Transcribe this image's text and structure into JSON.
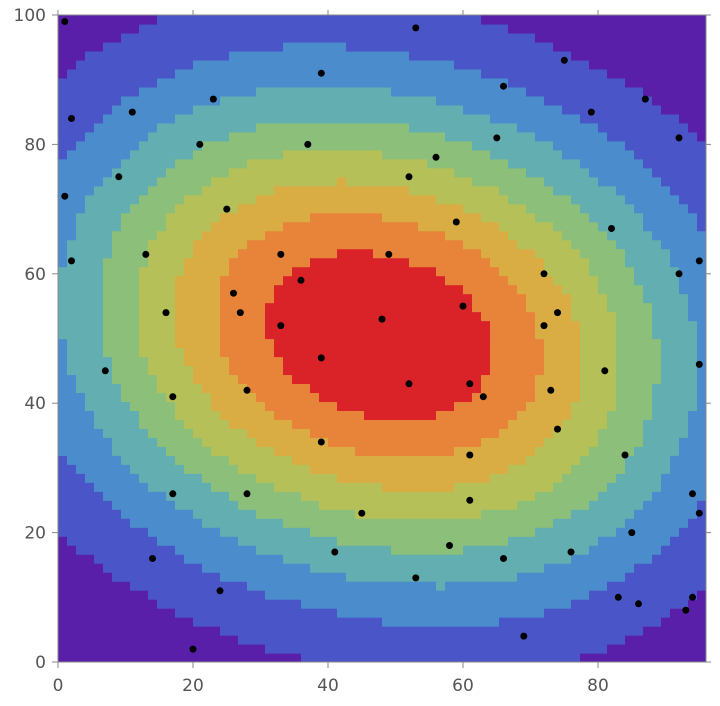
{
  "chart_data": {
    "type": "contour",
    "title": "",
    "xlabel": "",
    "ylabel": "",
    "xlim": [
      0,
      96
    ],
    "ylim": [
      0,
      100
    ],
    "x_ticks": [
      0,
      20,
      40,
      60,
      80
    ],
    "y_ticks": [
      0,
      20,
      40,
      60,
      80,
      100
    ],
    "x_tick_labels": [
      "0",
      "20",
      "40",
      "60",
      "80"
    ],
    "y_tick_labels": [
      "0",
      "20",
      "40",
      "60",
      "80",
      "100"
    ],
    "grid": false,
    "legend": "none",
    "contour_levels": 10,
    "palette": [
      "#5a1fa8",
      "#4a55c8",
      "#4a8ccc",
      "#62aeb0",
      "#8cbf7a",
      "#b5c058",
      "#d9ad44",
      "#e8833a",
      "#d92328"
    ],
    "peaks": [
      {
        "x": 30,
        "y": 56,
        "amplitude": 1.0
      },
      {
        "x": 65,
        "y": 45,
        "amplitude": 1.0
      }
    ],
    "points": [
      {
        "x": 1,
        "y": 99
      },
      {
        "x": 53,
        "y": 98
      },
      {
        "x": 39,
        "y": 91
      },
      {
        "x": 75,
        "y": 93
      },
      {
        "x": 66,
        "y": 89
      },
      {
        "x": 87,
        "y": 87
      },
      {
        "x": 2,
        "y": 84
      },
      {
        "x": 11,
        "y": 85
      },
      {
        "x": 23,
        "y": 87
      },
      {
        "x": 79,
        "y": 85
      },
      {
        "x": 21,
        "y": 80
      },
      {
        "x": 37,
        "y": 80
      },
      {
        "x": 65,
        "y": 81
      },
      {
        "x": 92,
        "y": 81
      },
      {
        "x": 56,
        "y": 78
      },
      {
        "x": 9,
        "y": 75
      },
      {
        "x": 52,
        "y": 75
      },
      {
        "x": 1,
        "y": 72
      },
      {
        "x": 25,
        "y": 70
      },
      {
        "x": 59,
        "y": 68
      },
      {
        "x": 82,
        "y": 67
      },
      {
        "x": 13,
        "y": 63
      },
      {
        "x": 33,
        "y": 63
      },
      {
        "x": 49,
        "y": 63
      },
      {
        "x": 2,
        "y": 62
      },
      {
        "x": 95,
        "y": 62
      },
      {
        "x": 72,
        "y": 60
      },
      {
        "x": 92,
        "y": 60
      },
      {
        "x": 36,
        "y": 59
      },
      {
        "x": 26,
        "y": 57
      },
      {
        "x": 60,
        "y": 55
      },
      {
        "x": 16,
        "y": 54
      },
      {
        "x": 27,
        "y": 54
      },
      {
        "x": 74,
        "y": 54
      },
      {
        "x": 48,
        "y": 53
      },
      {
        "x": 33,
        "y": 52
      },
      {
        "x": 72,
        "y": 52
      },
      {
        "x": 39,
        "y": 47
      },
      {
        "x": 95,
        "y": 46
      },
      {
        "x": 7,
        "y": 45
      },
      {
        "x": 81,
        "y": 45
      },
      {
        "x": 52,
        "y": 43
      },
      {
        "x": 61,
        "y": 43
      },
      {
        "x": 28,
        "y": 42
      },
      {
        "x": 73,
        "y": 42
      },
      {
        "x": 17,
        "y": 41
      },
      {
        "x": 63,
        "y": 41
      },
      {
        "x": 74,
        "y": 36
      },
      {
        "x": 39,
        "y": 34
      },
      {
        "x": 61,
        "y": 32
      },
      {
        "x": 84,
        "y": 32
      },
      {
        "x": 17,
        "y": 26
      },
      {
        "x": 28,
        "y": 26
      },
      {
        "x": 94,
        "y": 26
      },
      {
        "x": 61,
        "y": 25
      },
      {
        "x": 45,
        "y": 23
      },
      {
        "x": 95,
        "y": 23
      },
      {
        "x": 85,
        "y": 20
      },
      {
        "x": 58,
        "y": 18
      },
      {
        "x": 41,
        "y": 17
      },
      {
        "x": 76,
        "y": 17
      },
      {
        "x": 14,
        "y": 16
      },
      {
        "x": 66,
        "y": 16
      },
      {
        "x": 53,
        "y": 13
      },
      {
        "x": 24,
        "y": 11
      },
      {
        "x": 83,
        "y": 10
      },
      {
        "x": 94,
        "y": 10
      },
      {
        "x": 86,
        "y": 9
      },
      {
        "x": 93,
        "y": 8
      },
      {
        "x": 69,
        "y": 4
      },
      {
        "x": 20,
        "y": 2
      }
    ]
  }
}
